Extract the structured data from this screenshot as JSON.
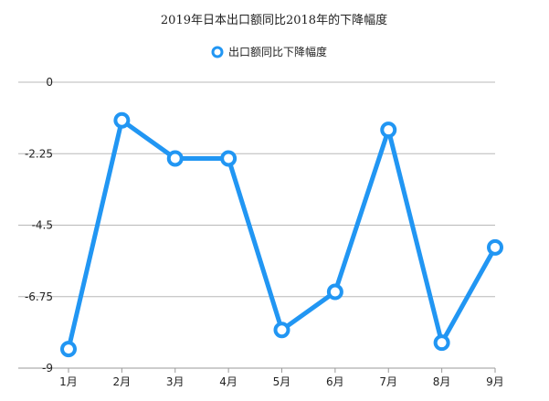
{
  "chart_data": {
    "type": "line",
    "title": "2019年日本出口额同比2018年的下降幅度",
    "categories": [
      "1月",
      "2月",
      "3月",
      "4月",
      "5月",
      "6月",
      "7月",
      "8月",
      "9月"
    ],
    "series": [
      {
        "name": "出口额同比下降幅度",
        "values": [
          -8.4,
          -1.2,
          -2.4,
          -2.4,
          -7.8,
          -6.6,
          -1.5,
          -8.2,
          -5.2
        ],
        "color": "#2196f3"
      }
    ],
    "yticks": [
      0,
      -2.25,
      -4.5,
      -6.75,
      -9
    ],
    "ytick_labels": [
      "0",
      "-2.25",
      "-4.5",
      "-6.75",
      "-9"
    ],
    "ylim": [
      -9,
      0
    ],
    "xlabel": "",
    "ylabel": "",
    "grid": true,
    "legend_position": "top"
  }
}
